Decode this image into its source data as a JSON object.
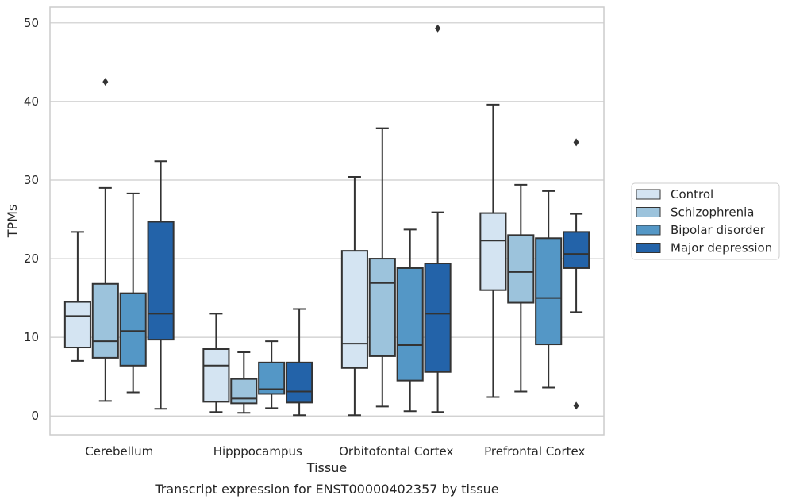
{
  "caption": "Transcript expression for ENST00000402357 by tissue",
  "colors": {
    "Control": "#d4e4f2",
    "Schizophrenia": "#9cc3dc",
    "Bipolar disorder": "#5497c6",
    "Major depression": "#2363a9",
    "edge": "#333333",
    "grid": "#cccccc",
    "frame": "#cccccc"
  },
  "chart_data": {
    "type": "box",
    "xlabel": "Tissue",
    "ylabel": "TPMs",
    "ylim": [
      -2.4,
      52
    ],
    "yticks": [
      0,
      10,
      20,
      30,
      40,
      50
    ],
    "grid": "y",
    "legend_position": "right",
    "categories": [
      "Cerebellum",
      "Hipppocampus",
      "Orbitofontal Cortex",
      "Prefrontal Cortex"
    ],
    "series": [
      {
        "name": "Control",
        "boxes": [
          {
            "whislo": 7.0,
            "q1": 8.7,
            "med": 12.7,
            "q3": 14.5,
            "whishi": 23.4,
            "fliers": []
          },
          {
            "whislo": 0.5,
            "q1": 1.8,
            "med": 6.4,
            "q3": 8.5,
            "whishi": 13.0,
            "fliers": []
          },
          {
            "whislo": 0.1,
            "q1": 6.1,
            "med": 9.2,
            "q3": 21.0,
            "whishi": 30.4,
            "fliers": []
          },
          {
            "whislo": 2.4,
            "q1": 16.0,
            "med": 22.3,
            "q3": 25.8,
            "whishi": 39.6,
            "fliers": []
          }
        ]
      },
      {
        "name": "Schizophrenia",
        "boxes": [
          {
            "whislo": 1.9,
            "q1": 7.4,
            "med": 9.5,
            "q3": 16.8,
            "whishi": 29.0,
            "fliers": [
              42.5
            ]
          },
          {
            "whislo": 0.4,
            "q1": 1.6,
            "med": 2.2,
            "q3": 4.7,
            "whishi": 8.1,
            "fliers": []
          },
          {
            "whislo": 1.2,
            "q1": 7.6,
            "med": 16.9,
            "q3": 20.0,
            "whishi": 36.6,
            "fliers": []
          },
          {
            "whislo": 3.1,
            "q1": 14.4,
            "med": 18.3,
            "q3": 23.0,
            "whishi": 29.4,
            "fliers": []
          }
        ]
      },
      {
        "name": "Bipolar disorder",
        "boxes": [
          {
            "whislo": 3.0,
            "q1": 6.4,
            "med": 10.8,
            "q3": 15.6,
            "whishi": 28.3,
            "fliers": []
          },
          {
            "whislo": 1.0,
            "q1": 2.8,
            "med": 3.4,
            "q3": 6.8,
            "whishi": 9.5,
            "fliers": []
          },
          {
            "whislo": 0.6,
            "q1": 4.5,
            "med": 9.0,
            "q3": 18.8,
            "whishi": 23.7,
            "fliers": []
          },
          {
            "whislo": 3.6,
            "q1": 9.1,
            "med": 15.0,
            "q3": 22.6,
            "whishi": 28.6,
            "fliers": []
          }
        ]
      },
      {
        "name": "Major depression",
        "boxes": [
          {
            "whislo": 0.9,
            "q1": 9.7,
            "med": 13.0,
            "q3": 24.7,
            "whishi": 32.4,
            "fliers": []
          },
          {
            "whislo": 0.1,
            "q1": 1.7,
            "med": 3.1,
            "q3": 6.8,
            "whishi": 13.6,
            "fliers": []
          },
          {
            "whislo": 0.5,
            "q1": 5.6,
            "med": 13.0,
            "q3": 19.4,
            "whishi": 25.9,
            "fliers": [
              49.3
            ]
          },
          {
            "whislo": 13.2,
            "q1": 18.8,
            "med": 20.6,
            "q3": 23.4,
            "whishi": 25.7,
            "fliers": [
              34.8,
              1.3
            ]
          }
        ]
      }
    ]
  }
}
